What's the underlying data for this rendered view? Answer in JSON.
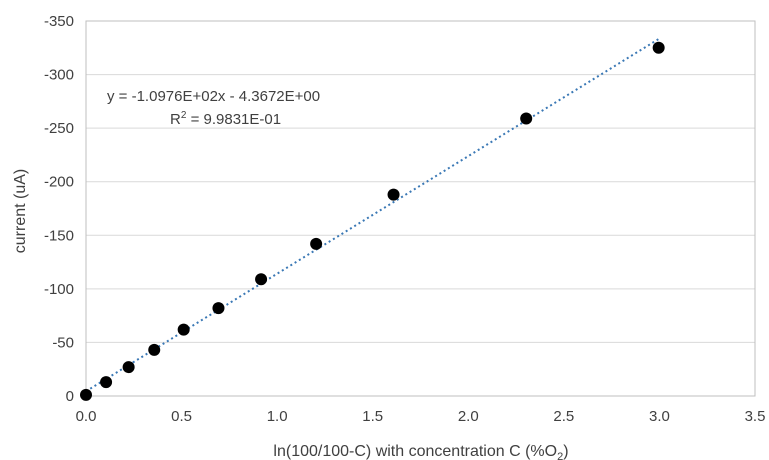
{
  "chart_data": {
    "type": "scatter",
    "title": "",
    "xlabel": "ln(100/100-C) with concentration C (%O",
    "xlabel_sub": "2",
    "xlabel_suffix": ")",
    "ylabel": "current (uA)",
    "xlim": [
      0,
      3.5
    ],
    "ylim": [
      0,
      -350
    ],
    "x_ticks": [
      0.0,
      0.5,
      1.0,
      1.5,
      2.0,
      2.5,
      3.0,
      3.5
    ],
    "x_tick_labels": [
      "0.0",
      "0.5",
      "1.0",
      "1.5",
      "2.0",
      "2.5",
      "3.0",
      "3.5"
    ],
    "y_ticks": [
      0,
      -50,
      -100,
      -150,
      -200,
      -250,
      -300,
      -350
    ],
    "y_tick_labels": [
      "0",
      "-50",
      "-100",
      "-150",
      "-200",
      "-250",
      "-300",
      "-350"
    ],
    "grid": "horizontal",
    "legend": "none",
    "series": [
      {
        "x": [
          0.0,
          0.105,
          0.223,
          0.357,
          0.511,
          0.693,
          0.916,
          1.204,
          1.609,
          2.303,
          2.996
        ],
        "y": [
          -1,
          -13,
          -27,
          -43,
          -62,
          -82,
          -109,
          -142,
          -188,
          -259,
          -325
        ],
        "color": "#000000"
      }
    ],
    "trendline": {
      "slope": -109.76,
      "intercept": -4.3672,
      "x_range": [
        0.0,
        3.0
      ],
      "color": "#3a78b5",
      "style": "dotted"
    },
    "annotations": {
      "equation": "y = -1.0976E+02x - 4.3672E+00",
      "r2_prefix": "R",
      "r2_sup": "2",
      "r2_value": " = 9.9831E-01"
    },
    "colors": {
      "grid": "#d9d9d9",
      "frame": "#bfbfbf",
      "text": "#404040"
    }
  }
}
